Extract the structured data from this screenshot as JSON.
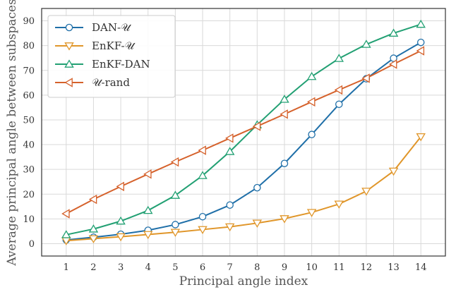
{
  "chart_data": {
    "type": "line",
    "xlabel": "Principal angle index",
    "ylabel": "Average principal angle between subspaces",
    "x": [
      1,
      2,
      3,
      4,
      5,
      6,
      7,
      8,
      9,
      10,
      11,
      12,
      13,
      14
    ],
    "xlim": [
      0.1,
      14.9
    ],
    "ylim": [
      -5,
      95
    ],
    "yticks": [
      0,
      10,
      20,
      30,
      40,
      50,
      60,
      70,
      80,
      90
    ],
    "grid": true,
    "legend": "top-left",
    "series": [
      {
        "name": "DAN-𝒰",
        "color": "#1f6fa8",
        "marker": "circle",
        "values": [
          1.5,
          2.6,
          3.8,
          5.4,
          7.7,
          10.9,
          15.6,
          22.6,
          32.4,
          44.1,
          56.3,
          66.6,
          74.9,
          81.3
        ]
      },
      {
        "name": "EnKF-𝒰",
        "color": "#e0962a",
        "marker": "triangle-down",
        "values": [
          1.2,
          2.0,
          2.8,
          3.7,
          4.6,
          5.7,
          6.8,
          8.3,
          10.1,
          12.6,
          16.0,
          21.2,
          29.3,
          43.2
        ]
      },
      {
        "name": "EnKF-DAN",
        "color": "#22a073",
        "marker": "triangle-up",
        "values": [
          3.6,
          5.9,
          9.1,
          13.4,
          19.5,
          27.5,
          37.2,
          48.0,
          58.3,
          67.5,
          74.8,
          80.5,
          85.0,
          88.6
        ]
      },
      {
        "name": "𝒰-rand",
        "color": "#d5612b",
        "marker": "triangle-left",
        "values": [
          12.1,
          17.9,
          23.1,
          28.1,
          33.0,
          37.7,
          42.6,
          47.4,
          52.3,
          57.3,
          62.1,
          66.8,
          72.5,
          77.9
        ]
      }
    ]
  }
}
